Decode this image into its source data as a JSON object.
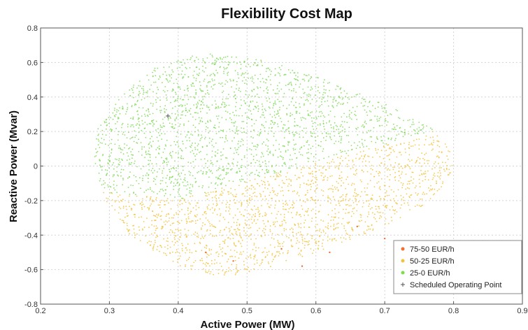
{
  "chart_data": {
    "type": "scatter",
    "title": "Flexibility Cost Map",
    "xlabel": "Active Power (MW)",
    "ylabel": "Reactive Power (Mvar)",
    "xlim": [
      0.2,
      0.9
    ],
    "ylim": [
      -0.8,
      0.8
    ],
    "xticks": [
      0.2,
      0.3,
      0.4,
      0.5,
      0.6,
      0.7,
      0.8,
      0.9
    ],
    "xtick_labels": [
      "0.2",
      "0.3",
      "0.4",
      "0.5",
      "0.6",
      "0.7",
      "0.8",
      "0.9"
    ],
    "yticks": [
      -0.8,
      -0.6,
      -0.4,
      -0.2,
      0,
      0.2,
      0.4,
      0.6,
      0.8
    ],
    "ytick_labels": [
      "-0.8",
      "-0.6",
      "-0.4",
      "-0.2",
      "0",
      "0.2",
      "0.4",
      "0.6",
      "0.8"
    ],
    "grid": true,
    "legend_position": "bottom-right",
    "series": [
      {
        "name": "75-50 EUR/h",
        "color": "#f07030",
        "points": [
          [
            0.55,
            -0.48
          ],
          [
            0.62,
            -0.5
          ],
          [
            0.48,
            -0.55
          ],
          [
            0.7,
            -0.42
          ],
          [
            0.58,
            -0.58
          ],
          [
            0.66,
            -0.35
          ],
          [
            0.44,
            -0.5
          ]
        ]
      },
      {
        "name": "50-25 EUR/h",
        "color": "#f2c23a",
        "region": "lower band of the operating area, from about (0.29, -0.15) down to (0.47, -0.65) and across to (0.79, 0.2)"
      },
      {
        "name": "25-0 EUR/h",
        "color": "#7ed957",
        "region": "upper band of the operating area, from about (0.28, 0.1) up to (0.44, 0.66) and across to (0.77, 0.2)"
      },
      {
        "name": "Scheduled Operating Point",
        "color": "#555555",
        "points": [
          [
            0.385,
            0.29
          ]
        ]
      }
    ]
  }
}
